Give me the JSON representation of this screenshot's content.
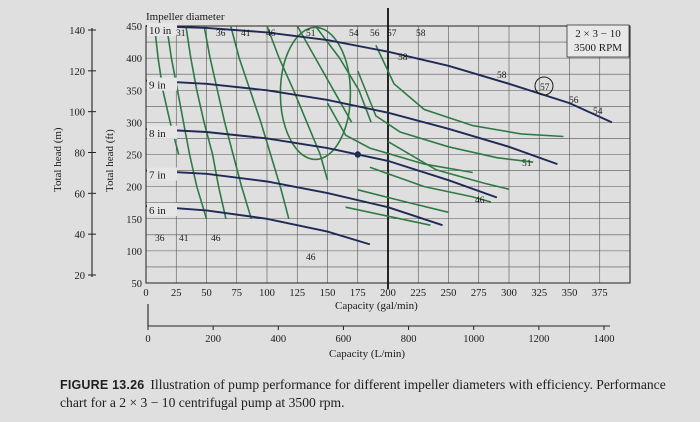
{
  "chart_data": {
    "type": "line",
    "title": "2 × 3 − 10\n3500 RPM",
    "diameter_title": "Impeller diameter",
    "xlabel": "Capacity (gal/min)",
    "ylabel": "Total head (ft)",
    "secondary_xlabel": "Capacity (L/min)",
    "secondary_ylabel": "Total head (m)",
    "xlim": [
      0,
      400
    ],
    "ylim": [
      50,
      450
    ],
    "x_ticks": [
      0,
      25,
      50,
      75,
      100,
      125,
      150,
      175,
      200,
      225,
      250,
      275,
      300,
      325,
      350,
      375
    ],
    "y_ticks": [
      50,
      100,
      150,
      200,
      250,
      300,
      350,
      400,
      450
    ],
    "secondary_x_ticks": [
      0,
      200,
      400,
      600,
      800,
      1000,
      1200,
      1400
    ],
    "secondary_y_ticks": [
      20,
      40,
      60,
      80,
      100,
      120,
      140
    ],
    "impeller_curves": [
      {
        "name": "10 in",
        "x": [
          0,
          50,
          100,
          150,
          200,
          250,
          300,
          350,
          385
        ],
        "y": [
          450,
          447,
          440,
          428,
          410,
          388,
          360,
          330,
          300
        ]
      },
      {
        "name": "9 in",
        "x": [
          0,
          50,
          100,
          150,
          200,
          250,
          300,
          340
        ],
        "y": [
          365,
          360,
          350,
          335,
          315,
          290,
          262,
          235
        ]
      },
      {
        "name": "8 in",
        "x": [
          0,
          50,
          100,
          150,
          200,
          250,
          290
        ],
        "y": [
          290,
          285,
          275,
          260,
          240,
          210,
          183
        ]
      },
      {
        "name": "7 in",
        "x": [
          0,
          50,
          100,
          150,
          200,
          245
        ],
        "y": [
          225,
          220,
          208,
          190,
          168,
          140
        ]
      },
      {
        "name": "6 in",
        "x": [
          0,
          50,
          100,
          150,
          185
        ],
        "y": [
          170,
          163,
          150,
          130,
          110
        ]
      }
    ],
    "efficiency_curves": [
      {
        "name": "31",
        "x": [
          7,
          10,
          14,
          20,
          27
        ],
        "y": [
          450,
          400,
          350,
          300,
          250
        ]
      },
      {
        "name": "36",
        "x": [
          17,
          21,
          26,
          31,
          36,
          42,
          50
        ],
        "y": [
          450,
          400,
          350,
          300,
          250,
          200,
          150
        ]
      },
      {
        "name": "41",
        "x": [
          33,
          37,
          42,
          48,
          55,
          60,
          66
        ],
        "y": [
          450,
          400,
          350,
          300,
          250,
          200,
          150
        ]
      },
      {
        "name": "46",
        "x": [
          48,
          53,
          59,
          65,
          72,
          79,
          87
        ],
        "y": [
          450,
          400,
          350,
          300,
          250,
          200,
          150
        ]
      },
      {
        "name": "51",
        "x": [
          70,
          77,
          86,
          95,
          103,
          111,
          118
        ],
        "y": [
          450,
          400,
          350,
          300,
          250,
          200,
          150
        ]
      },
      {
        "name": "54",
        "x": [
          100,
          110,
          122,
          133,
          144,
          150
        ],
        "y": [
          450,
          400,
          350,
          300,
          250,
          210
        ]
      },
      {
        "name": "56",
        "x": [
          125,
          140,
          158,
          170
        ],
        "y": [
          450,
          400,
          340,
          300
        ]
      },
      {
        "name": "57",
        "x": [
          140,
          160,
          176,
          186
        ],
        "y": [
          450,
          400,
          350,
          300
        ]
      }
    ],
    "scale_labels": [
      "36",
      "41",
      "46"
    ],
    "curve_end_labels": [
      "58",
      "58",
      "57",
      "56",
      "54",
      "51",
      "46",
      "46"
    ],
    "operating_point": {
      "x": 175,
      "y": 250
    },
    "caption_label": "FIGURE 13.26",
    "caption": "Illustration of pump performance for different impeller diameters with efficiency. Performance chart for a 2 × 3 − 10 centrifugal pump at 3500 rpm."
  }
}
